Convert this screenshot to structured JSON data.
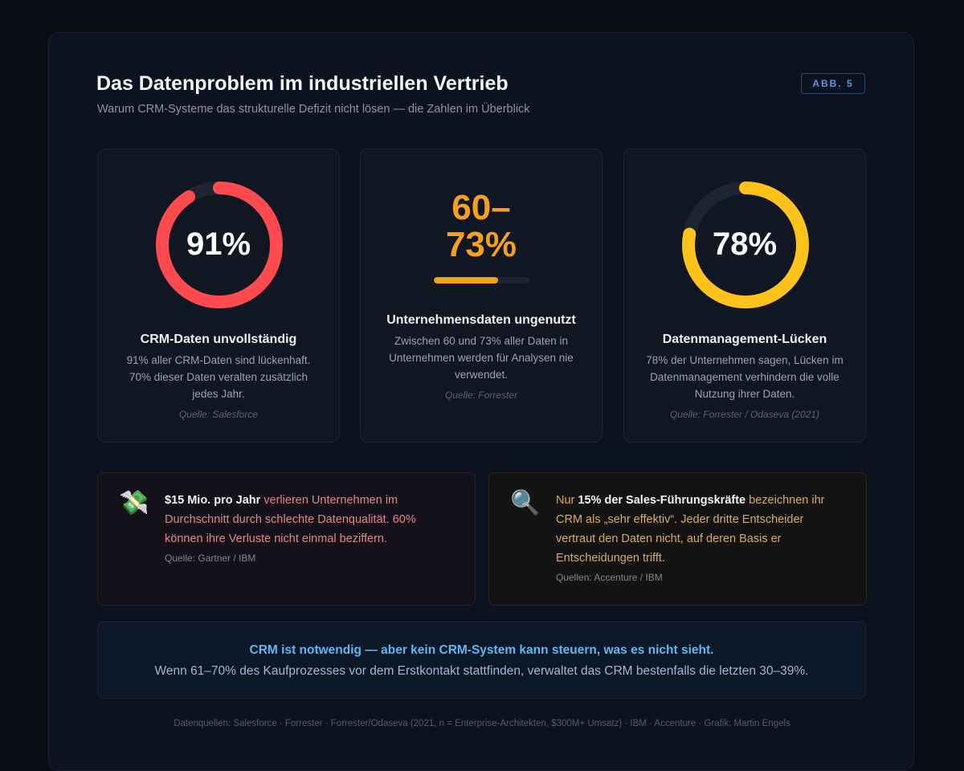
{
  "header": {
    "title": "Das Datenproblem im industriellen Vertrieb",
    "subtitle": "Warum CRM-Systeme das strukturelle Defizit nicht lösen — die Zahlen im Überblick",
    "badge": "ABB. 5"
  },
  "stats": [
    {
      "value_label": "91%",
      "percent": 91,
      "color": "#ff4a4f",
      "title": "CRM-Daten unvollständig",
      "description": "91% aller CRM-Daten sind lückenhaft. 70% dieser Daten veralten zusätzlich jedes Jahr.",
      "source": "Quelle: Salesforce"
    },
    {
      "value_line1": "60–",
      "value_line2": "73%",
      "bar_fill_percent": 67,
      "color": "#f7a11a",
      "title": "Unternehmensdaten ungenutzt",
      "description": "Zwischen 60 und 73% aller Daten in Unternehmen werden für Analysen nie verwendet.",
      "source": "Quelle: Forrester"
    },
    {
      "value_label": "78%",
      "percent": 78,
      "color": "#ffc21a",
      "title": "Datenmanagement-Lücken",
      "description": "78% der Unternehmen sagen, Lücken im Datenmanagement verhindern die volle Nutzung ihrer Daten.",
      "source": "Quelle: Forrester / Odaseva (2021)"
    }
  ],
  "info": [
    {
      "icon": "money-with-wings-icon",
      "icon_glyph": "💸",
      "bold": "$15 Mio. pro Jahr",
      "text": " verlieren Unternehmen im Durchschnitt durch schlechte Datenqualität. 60% können ihre Verluste nicht einmal beziffern.",
      "source": "Quelle: Gartner / IBM"
    },
    {
      "icon": "magnifying-glass-icon",
      "icon_glyph": "🔍",
      "prefix": "Nur ",
      "bold": "15% der Sales-Führungskräfte",
      "text": " bezeichnen ihr CRM als „sehr effektiv“. Jeder dritte Entscheider vertraut den Daten nicht, auf deren Basis er Entscheidungen trifft.",
      "source": "Quellen: Accenture / IBM"
    }
  ],
  "callout": {
    "headline": "CRM ist notwendig — aber kein CRM-System kann steuern, was es nicht sieht.",
    "body": "Wenn 61–70% des Kaufprozesses vor dem Erstkontakt stattfinden, verwaltet das CRM bestenfalls die letzten 30–39%."
  },
  "footer": "Datenquellen: Salesforce · Forrester · Forrester/Odaseva (2021, n = Enterprise-Architekten, $300M+ Umsatz) · IBM · Accenture · Grafik: Martin Engels",
  "colors": {
    "track": "#1f2433"
  }
}
